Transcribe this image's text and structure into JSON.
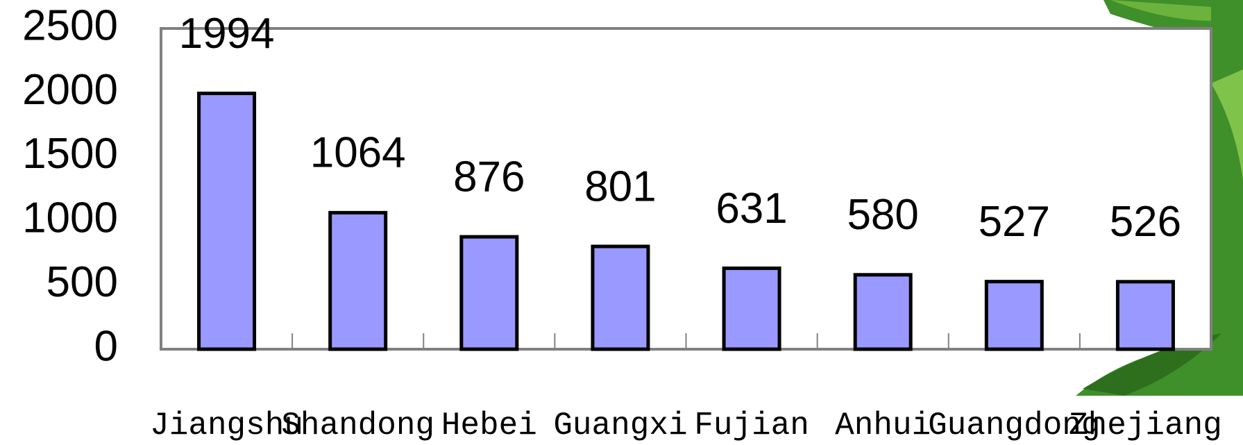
{
  "chart_data": {
    "type": "bar",
    "categories": [
      "Jiangshu",
      "Shandong",
      "Hebei",
      "Guangxi",
      "Fujian",
      "Anhui",
      "Guangdong",
      "Zhejiang"
    ],
    "values": [
      1994,
      1064,
      876,
      801,
      631,
      580,
      527,
      526
    ],
    "color": "#9999ff",
    "ylim": [
      0,
      2500
    ],
    "yticks": [
      0,
      500,
      1000,
      1500,
      2000,
      2500
    ],
    "grid": false
  }
}
